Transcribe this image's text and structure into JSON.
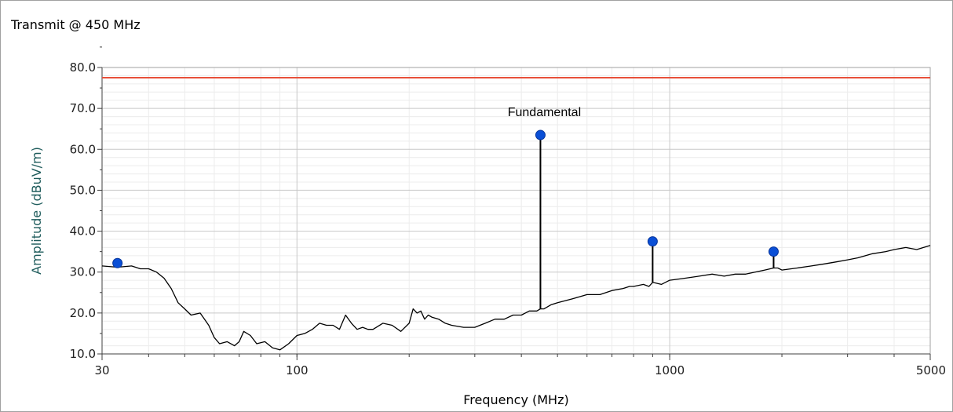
{
  "window": {
    "title": "Transmit @ 450 MHz"
  },
  "chart_data": {
    "type": "line",
    "title": "Transmit @ 450 MHz",
    "xlabel": "Frequency (MHz)",
    "ylabel": "Amplitude (dBuV/m)",
    "x_scale": "log",
    "xlim": [
      30,
      5000
    ],
    "ylim": [
      10,
      80
    ],
    "x_ticks": [
      30,
      100,
      1000,
      5000
    ],
    "x_tick_labels": [
      "30",
      "100",
      "1000",
      "5000"
    ],
    "y_ticks": [
      10,
      20,
      30,
      40,
      50,
      60,
      70,
      80
    ],
    "y_tick_labels": [
      "10.0",
      "20.0",
      "30.0",
      "40.0",
      "50.0",
      "60.0",
      "70.0",
      "80.0"
    ],
    "grid": true,
    "colors": {
      "limit": "#e8503a",
      "trace": "#000000",
      "marker": "#0a4fd6",
      "ylabel": "#1f5c5c"
    },
    "series": [
      {
        "type": "line",
        "color": "#e8503a",
        "x": [
          30,
          5000
        ],
        "y": [
          77.5,
          77.5
        ]
      },
      {
        "type": "line",
        "color": "#000000",
        "x": [
          30,
          33,
          36,
          38,
          40,
          42,
          44,
          46,
          48,
          50,
          52,
          55,
          58,
          60,
          62,
          65,
          68,
          70,
          72,
          75,
          78,
          82,
          86,
          90,
          95,
          100,
          105,
          110,
          115,
          120,
          125,
          130,
          135,
          140,
          145,
          150,
          155,
          160,
          170,
          180,
          190,
          200,
          205,
          210,
          215,
          220,
          225,
          230,
          240,
          250,
          260,
          280,
          300,
          320,
          340,
          360,
          380,
          400,
          420,
          440,
          450,
          460,
          480,
          500,
          550,
          600,
          650,
          700,
          750,
          780,
          800,
          850,
          880,
          900,
          950,
          1000,
          1100,
          1200,
          1300,
          1400,
          1500,
          1600,
          1800,
          1900,
          1950,
          2000,
          2200,
          2400,
          2600,
          2800,
          3000,
          3200,
          3500,
          3800,
          4000,
          4300,
          4600,
          5000
        ],
        "y": [
          31.5,
          31.2,
          31.5,
          30.8,
          30.8,
          30,
          28.5,
          26,
          22.5,
          21,
          19.5,
          20,
          17,
          14,
          12.5,
          13,
          12,
          13,
          15.5,
          14.5,
          12.5,
          13,
          11.5,
          11,
          12.5,
          14.5,
          15,
          16,
          17.5,
          17,
          17,
          16,
          19.5,
          17.5,
          16,
          16.5,
          16,
          16,
          17.5,
          17,
          15.5,
          17.5,
          21,
          20,
          20.5,
          18.5,
          19.5,
          19,
          18.5,
          17.5,
          17,
          16.5,
          16.5,
          17.5,
          18.5,
          18.5,
          19.5,
          19.5,
          20.5,
          20.5,
          21,
          21,
          22,
          22.5,
          23.5,
          24.5,
          24.5,
          25.5,
          26,
          26.5,
          26.5,
          27,
          26.5,
          27.5,
          27,
          28,
          28.5,
          29,
          29.5,
          29,
          29.5,
          29.5,
          30.5,
          31,
          31,
          30.5,
          31,
          31.5,
          32,
          32.5,
          33,
          33.5,
          34.5,
          35,
          35.5,
          36,
          35.5,
          36.5
        ]
      },
      {
        "type": "stem",
        "color": "#000000",
        "x": [
          450,
          900,
          1900
        ],
        "y": [
          63.5,
          37.5,
          35
        ]
      },
      {
        "type": "scatter",
        "color": "#0a4fd6",
        "x": [
          33,
          450,
          900,
          1900
        ],
        "y": [
          32.2,
          63.5,
          37.5,
          35
        ]
      }
    ],
    "annotations": [
      {
        "text": "Fundamental",
        "x": 450,
        "y": 63.5
      }
    ]
  }
}
